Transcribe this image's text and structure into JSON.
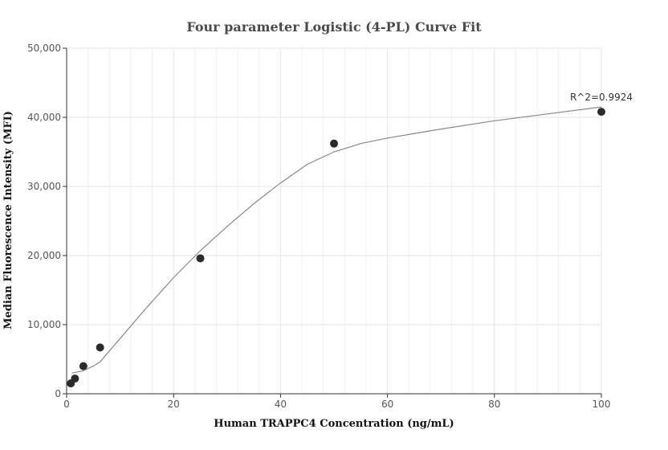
{
  "chart_data": {
    "type": "scatter",
    "title": "Four parameter Logistic (4-PL) Curve Fit",
    "xlabel": "Human TRAPPC4 Concentration (ng/mL)",
    "ylabel": "Median Fluorescence Intensity (MFI)",
    "xlim": [
      0,
      100
    ],
    "ylim": [
      0,
      50000
    ],
    "x_ticks": [
      0,
      20,
      40,
      60,
      80,
      100
    ],
    "y_ticks": [
      0,
      10000,
      20000,
      30000,
      40000,
      50000
    ],
    "x_tick_labels": [
      "0",
      "20",
      "40",
      "60",
      "80",
      "100"
    ],
    "y_tick_labels": [
      "0",
      "10,000",
      "20,000",
      "30,000",
      "40,000",
      "50,000"
    ],
    "grid": true,
    "points": [
      {
        "x": 0.78,
        "y": 1500
      },
      {
        "x": 1.56,
        "y": 2200
      },
      {
        "x": 3.13,
        "y": 4000
      },
      {
        "x": 6.25,
        "y": 6700
      },
      {
        "x": 25,
        "y": 19600
      },
      {
        "x": 50,
        "y": 36200
      },
      {
        "x": 100,
        "y": 40800
      }
    ],
    "fit_curve": [
      {
        "x": 1,
        "y": 3000
      },
      {
        "x": 3,
        "y": 3300
      },
      {
        "x": 5,
        "y": 4000
      },
      {
        "x": 6.25,
        "y": 4600
      },
      {
        "x": 10,
        "y": 8000
      },
      {
        "x": 15,
        "y": 12500
      },
      {
        "x": 20,
        "y": 16800
      },
      {
        "x": 25,
        "y": 20700
      },
      {
        "x": 30,
        "y": 24200
      },
      {
        "x": 35,
        "y": 27500
      },
      {
        "x": 40,
        "y": 30500
      },
      {
        "x": 45,
        "y": 33200
      },
      {
        "x": 50,
        "y": 35000
      },
      {
        "x": 55,
        "y": 36200
      },
      {
        "x": 60,
        "y": 37000
      },
      {
        "x": 70,
        "y": 38300
      },
      {
        "x": 80,
        "y": 39500
      },
      {
        "x": 90,
        "y": 40500
      },
      {
        "x": 100,
        "y": 41500
      }
    ],
    "annotation": "R^2=0.9924",
    "colors": {
      "points": "#2b2b2b",
      "curve": "#888888",
      "grid": "#e6e6ee",
      "axis": "#333333"
    }
  }
}
